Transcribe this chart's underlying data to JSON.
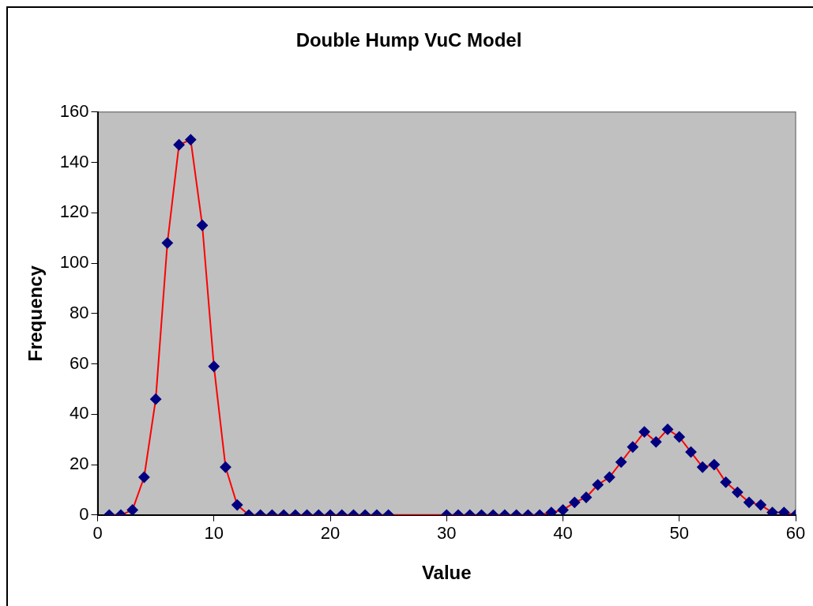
{
  "chart_data": {
    "type": "line",
    "title": "Double Hump VuC Model",
    "xlabel": "Value",
    "ylabel": "Frequency",
    "x": [
      1,
      2,
      3,
      4,
      5,
      6,
      7,
      8,
      9,
      10,
      11,
      12,
      13,
      14,
      15,
      16,
      17,
      18,
      19,
      20,
      21,
      22,
      23,
      24,
      25,
      30,
      31,
      32,
      33,
      34,
      35,
      36,
      37,
      38,
      39,
      40,
      41,
      42,
      43,
      44,
      45,
      46,
      47,
      48,
      49,
      50,
      51,
      52,
      53,
      54,
      55,
      56,
      57,
      58,
      59,
      60
    ],
    "series": [
      {
        "color": "#000080",
        "values": [
          0,
          0,
          2,
          15,
          46,
          108,
          147,
          149,
          115,
          59,
          19,
          4,
          0,
          0,
          0,
          0,
          0,
          0,
          0,
          0,
          0,
          0,
          0,
          0,
          0,
          0,
          0,
          0,
          0,
          0,
          0,
          0,
          0,
          0,
          1,
          2,
          5,
          7,
          12,
          15,
          21,
          27,
          33,
          29,
          34,
          31,
          25,
          19,
          20,
          13,
          9,
          5,
          4,
          1,
          1,
          0
        ]
      }
    ],
    "xlim": [
      0,
      60
    ],
    "xticks": [
      0,
      10,
      20,
      30,
      40,
      50,
      60
    ],
    "ylim": [
      0,
      160
    ],
    "yticks": [
      0,
      20,
      40,
      60,
      80,
      100,
      120,
      140,
      160
    ],
    "grid": false,
    "legend": false,
    "marker": "diamond",
    "line_style": "solid"
  }
}
